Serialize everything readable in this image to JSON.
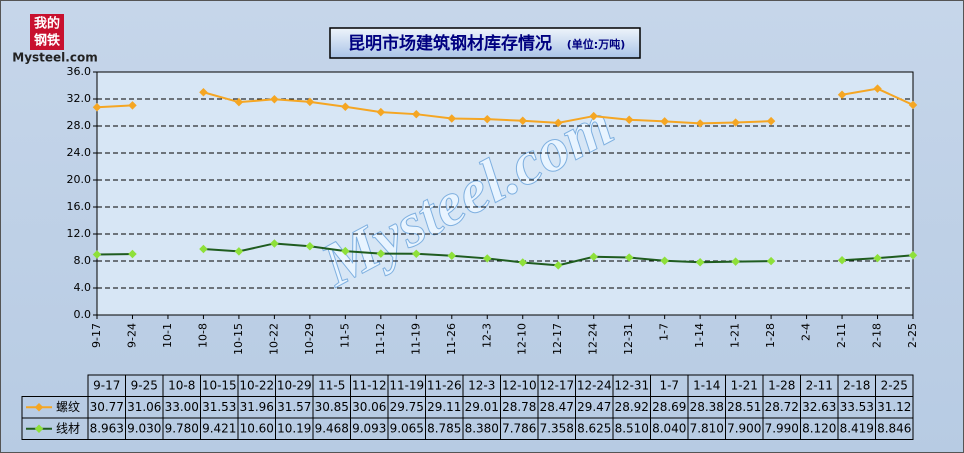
{
  "logo": [
    "我的",
    "钢铁",
    "Mysteel.com"
  ],
  "chart_data": {
    "type": "line",
    "title": "昆明市场建筑钢材库存情况",
    "subtitle": "(单位:万吨)",
    "watermark": "Mysteel.com",
    "categories": [
      "9-17",
      "9-24",
      "10-1",
      "10-8",
      "10-15",
      "10-22",
      "10-29",
      "11-5",
      "11-12",
      "11-19",
      "11-26",
      "12-3",
      "12-10",
      "12-17",
      "12-24",
      "12-31",
      "1-7",
      "1-14",
      "1-21",
      "1-28",
      "2-4",
      "2-11",
      "2-18",
      "2-25"
    ],
    "table_columns": [
      "9-17",
      "9-25",
      "10-8",
      "10-15",
      "10-22",
      "10-29",
      "11-5",
      "11-12",
      "11-19",
      "11-26",
      "12-3",
      "12-10",
      "12-17",
      "12-24",
      "12-31",
      "1-7",
      "1-14",
      "1-21",
      "1-28",
      "2-11",
      "2-18",
      "2-25"
    ],
    "series": [
      {
        "name": "螺纹",
        "color": "#f5a623",
        "marker_color": "#f5a623",
        "values": [
          30.77,
          31.06,
          null,
          33.0,
          31.53,
          31.96,
          31.57,
          30.85,
          30.06,
          29.75,
          29.11,
          29.01,
          28.78,
          28.47,
          29.47,
          28.92,
          28.69,
          28.38,
          28.51,
          28.72,
          null,
          32.63,
          33.53,
          31.12
        ],
        "value_labels": [
          "30.77",
          "31.06",
          null,
          "33.00",
          "31.53",
          "31.96",
          "31.57",
          "30.85",
          "30.06",
          "29.75",
          "29.11",
          "29.01",
          "28.78",
          "28.47",
          "29.47",
          "28.92",
          "28.69",
          "28.38",
          "28.51",
          "28.72",
          null,
          "32.63",
          "33.53",
          "31.12"
        ]
      },
      {
        "name": "线材",
        "color": "#1f5c1f",
        "marker_color": "#8ee03a",
        "values": [
          8.963,
          9.03,
          null,
          9.78,
          9.421,
          10.6,
          10.19,
          9.468,
          9.093,
          9.065,
          8.785,
          8.38,
          7.786,
          7.358,
          8.625,
          8.51,
          8.04,
          7.81,
          7.9,
          7.99,
          null,
          8.12,
          8.419,
          8.846
        ],
        "value_labels": [
          "8.963",
          "9.030",
          null,
          "9.780",
          "9.421",
          "10.60",
          "10.19",
          "9.468",
          "9.093",
          "9.065",
          "8.785",
          "8.380",
          "7.786",
          "7.358",
          "8.625",
          "8.510",
          "8.040",
          "7.810",
          "7.900",
          "7.990",
          null,
          "8.120",
          "8.419",
          "8.846"
        ]
      }
    ],
    "ylim": [
      0,
      36
    ],
    "yticks": [
      {
        "value": 0,
        "label": "0.0"
      },
      {
        "value": 4,
        "label": "4.0"
      },
      {
        "value": 8,
        "label": "8.0"
      },
      {
        "value": 12,
        "label": "12.0"
      },
      {
        "value": 16,
        "label": "16.0"
      },
      {
        "value": 20,
        "label": "20.0"
      },
      {
        "value": 24,
        "label": "24.0"
      },
      {
        "value": 28,
        "label": "28.0"
      },
      {
        "value": 32,
        "label": "32.0"
      },
      {
        "value": 36,
        "label": "36.0"
      }
    ],
    "grid": true
  }
}
